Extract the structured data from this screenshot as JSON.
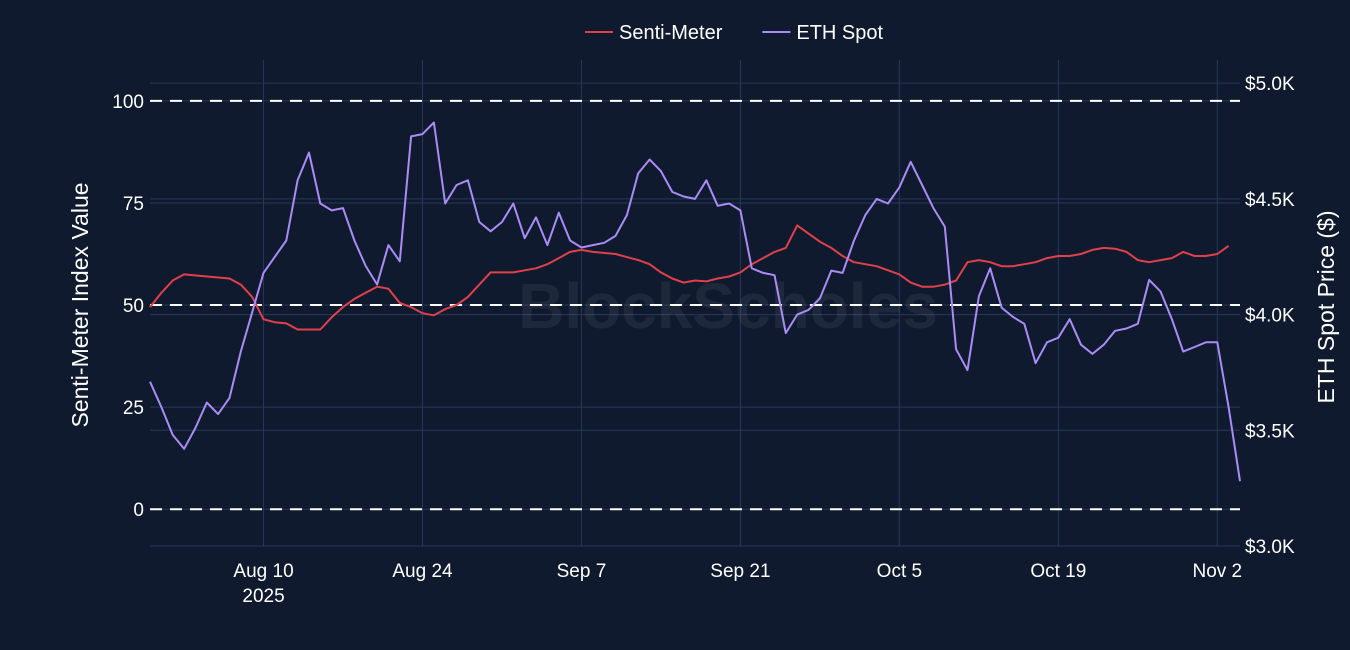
{
  "chart_data": {
    "type": "line",
    "title": "",
    "watermark": "BlockScholes",
    "xlabel": "",
    "ylabel_left": "Senti-Meter Index Value",
    "ylabel_right": "ETH Spot Price ($)",
    "x_range": [
      "2025-07-31",
      "2025-11-04"
    ],
    "x_ticks": [
      {
        "date": "2025-08-10",
        "label": "Aug 10",
        "sublabel": "2025"
      },
      {
        "date": "2025-08-24",
        "label": "Aug 24",
        "sublabel": ""
      },
      {
        "date": "2025-09-07",
        "label": "Sep 7",
        "sublabel": ""
      },
      {
        "date": "2025-09-21",
        "label": "Sep 21",
        "sublabel": ""
      },
      {
        "date": "2025-10-05",
        "label": "Oct 5",
        "sublabel": ""
      },
      {
        "date": "2025-10-19",
        "label": "Oct 19",
        "sublabel": ""
      },
      {
        "date": "2025-11-02",
        "label": "Nov 2",
        "sublabel": ""
      }
    ],
    "y_left": {
      "range": [
        -9,
        110
      ],
      "ticks": [
        {
          "value": 0,
          "label": "0"
        },
        {
          "value": 25,
          "label": "25"
        },
        {
          "value": 50,
          "label": "50"
        },
        {
          "value": 75,
          "label": "75"
        },
        {
          "value": 100,
          "label": "100"
        }
      ]
    },
    "y_right": {
      "range": [
        3000,
        5100
      ],
      "ticks": [
        {
          "value": 3000,
          "label": "$3.0K"
        },
        {
          "value": 3500,
          "label": "$3.5K"
        },
        {
          "value": 4000,
          "label": "$4.0K"
        },
        {
          "value": 4500,
          "label": "$4.5K"
        },
        {
          "value": 5000,
          "label": "$5.0K"
        }
      ]
    },
    "reference_lines_left": [
      0,
      50,
      100
    ],
    "grid": true,
    "legend_position": "top-center",
    "colors": {
      "background": "#101a2e",
      "grid": "#26385a",
      "senti": "#e0404a",
      "eth": "#a98cf5",
      "reference": "#ffffff"
    },
    "series": [
      {
        "name": "Senti-Meter",
        "axis": "left",
        "points": [
          [
            "2025-07-31",
            49.5
          ],
          [
            "2025-08-01",
            53
          ],
          [
            "2025-08-02",
            56
          ],
          [
            "2025-08-03",
            57.5
          ],
          [
            "2025-08-05",
            57
          ],
          [
            "2025-08-07",
            56.5
          ],
          [
            "2025-08-08",
            55
          ],
          [
            "2025-08-09",
            52
          ],
          [
            "2025-08-10",
            46.5
          ],
          [
            "2025-08-11",
            45.8
          ],
          [
            "2025-08-12",
            45.5
          ],
          [
            "2025-08-13",
            44
          ],
          [
            "2025-08-15",
            44
          ],
          [
            "2025-08-16",
            47
          ],
          [
            "2025-08-17",
            49.5
          ],
          [
            "2025-08-18",
            51.5
          ],
          [
            "2025-08-19",
            53
          ],
          [
            "2025-08-20",
            54.5
          ],
          [
            "2025-08-21",
            54
          ],
          [
            "2025-08-22",
            50.5
          ],
          [
            "2025-08-23",
            49.5
          ],
          [
            "2025-08-24",
            48
          ],
          [
            "2025-08-25",
            47.5
          ],
          [
            "2025-08-26",
            49
          ],
          [
            "2025-08-27",
            50
          ],
          [
            "2025-08-28",
            52
          ],
          [
            "2025-08-29",
            55
          ],
          [
            "2025-08-30",
            58
          ],
          [
            "2025-09-01",
            58
          ],
          [
            "2025-09-02",
            58.5
          ],
          [
            "2025-09-03",
            59
          ],
          [
            "2025-09-04",
            60
          ],
          [
            "2025-09-05",
            61.5
          ],
          [
            "2025-09-06",
            63
          ],
          [
            "2025-09-07",
            63.5
          ],
          [
            "2025-09-08",
            63
          ],
          [
            "2025-09-10",
            62.5
          ],
          [
            "2025-09-12",
            61
          ],
          [
            "2025-09-13",
            60
          ],
          [
            "2025-09-14",
            58
          ],
          [
            "2025-09-15",
            56.5
          ],
          [
            "2025-09-16",
            55.5
          ],
          [
            "2025-09-17",
            56
          ],
          [
            "2025-09-18",
            55.8
          ],
          [
            "2025-09-19",
            56.5
          ],
          [
            "2025-09-20",
            57
          ],
          [
            "2025-09-21",
            58
          ],
          [
            "2025-09-22",
            60
          ],
          [
            "2025-09-23",
            61.5
          ],
          [
            "2025-09-24",
            63
          ],
          [
            "2025-09-25",
            64
          ],
          [
            "2025-09-26",
            69.5
          ],
          [
            "2025-09-27",
            67.5
          ],
          [
            "2025-09-28",
            65.5
          ],
          [
            "2025-09-29",
            64
          ],
          [
            "2025-09-30",
            62
          ],
          [
            "2025-10-01",
            60.5
          ],
          [
            "2025-10-02",
            60
          ],
          [
            "2025-10-03",
            59.5
          ],
          [
            "2025-10-04",
            58.5
          ],
          [
            "2025-10-05",
            57.5
          ],
          [
            "2025-10-06",
            55.5
          ],
          [
            "2025-10-07",
            54.5
          ],
          [
            "2025-10-08",
            54.5
          ],
          [
            "2025-10-09",
            55
          ],
          [
            "2025-10-10",
            56
          ],
          [
            "2025-10-11",
            60.5
          ],
          [
            "2025-10-12",
            61
          ],
          [
            "2025-10-13",
            60.5
          ],
          [
            "2025-10-14",
            59.5
          ],
          [
            "2025-10-15",
            59.5
          ],
          [
            "2025-10-16",
            60
          ],
          [
            "2025-10-17",
            60.5
          ],
          [
            "2025-10-18",
            61.5
          ],
          [
            "2025-10-19",
            62
          ],
          [
            "2025-10-20",
            62
          ],
          [
            "2025-10-21",
            62.5
          ],
          [
            "2025-10-22",
            63.5
          ],
          [
            "2025-10-23",
            64
          ],
          [
            "2025-10-24",
            63.8
          ],
          [
            "2025-10-25",
            63
          ],
          [
            "2025-10-26",
            61
          ],
          [
            "2025-10-27",
            60.5
          ],
          [
            "2025-10-28",
            61
          ],
          [
            "2025-10-29",
            61.5
          ],
          [
            "2025-10-30",
            63
          ],
          [
            "2025-10-31",
            62
          ],
          [
            "2025-11-01",
            62
          ],
          [
            "2025-11-02",
            62.5
          ],
          [
            "2025-11-03",
            64.5
          ]
        ]
      },
      {
        "name": "ETH Spot",
        "axis": "right",
        "points": [
          [
            "2025-07-31",
            3710
          ],
          [
            "2025-08-01",
            3600
          ],
          [
            "2025-08-02",
            3480
          ],
          [
            "2025-08-03",
            3420
          ],
          [
            "2025-08-04",
            3510
          ],
          [
            "2025-08-05",
            3620
          ],
          [
            "2025-08-06",
            3570
          ],
          [
            "2025-08-07",
            3640
          ],
          [
            "2025-08-08",
            3840
          ],
          [
            "2025-08-09",
            4010
          ],
          [
            "2025-08-10",
            4180
          ],
          [
            "2025-08-11",
            4250
          ],
          [
            "2025-08-12",
            4320
          ],
          [
            "2025-08-13",
            4580
          ],
          [
            "2025-08-14",
            4700
          ],
          [
            "2025-08-15",
            4480
          ],
          [
            "2025-08-16",
            4450
          ],
          [
            "2025-08-17",
            4460
          ],
          [
            "2025-08-18",
            4320
          ],
          [
            "2025-08-19",
            4210
          ],
          [
            "2025-08-20",
            4130
          ],
          [
            "2025-08-21",
            4300
          ],
          [
            "2025-08-22",
            4230
          ],
          [
            "2025-08-23",
            4770
          ],
          [
            "2025-08-24",
            4780
          ],
          [
            "2025-08-25",
            4830
          ],
          [
            "2025-08-26",
            4480
          ],
          [
            "2025-08-27",
            4560
          ],
          [
            "2025-08-28",
            4580
          ],
          [
            "2025-08-29",
            4400
          ],
          [
            "2025-08-30",
            4360
          ],
          [
            "2025-08-31",
            4400
          ],
          [
            "2025-09-01",
            4480
          ],
          [
            "2025-09-02",
            4330
          ],
          [
            "2025-09-03",
            4420
          ],
          [
            "2025-09-04",
            4300
          ],
          [
            "2025-09-05",
            4440
          ],
          [
            "2025-09-06",
            4320
          ],
          [
            "2025-09-07",
            4290
          ],
          [
            "2025-09-08",
            4300
          ],
          [
            "2025-09-09",
            4310
          ],
          [
            "2025-09-10",
            4340
          ],
          [
            "2025-09-11",
            4430
          ],
          [
            "2025-09-12",
            4610
          ],
          [
            "2025-09-13",
            4670
          ],
          [
            "2025-09-14",
            4620
          ],
          [
            "2025-09-15",
            4530
          ],
          [
            "2025-09-16",
            4510
          ],
          [
            "2025-09-17",
            4500
          ],
          [
            "2025-09-18",
            4580
          ],
          [
            "2025-09-19",
            4470
          ],
          [
            "2025-09-20",
            4480
          ],
          [
            "2025-09-21",
            4450
          ],
          [
            "2025-09-22",
            4200
          ],
          [
            "2025-09-23",
            4180
          ],
          [
            "2025-09-24",
            4170
          ],
          [
            "2025-09-25",
            3920
          ],
          [
            "2025-09-26",
            4000
          ],
          [
            "2025-09-27",
            4020
          ],
          [
            "2025-09-28",
            4070
          ],
          [
            "2025-09-29",
            4190
          ],
          [
            "2025-09-30",
            4180
          ],
          [
            "2025-10-01",
            4320
          ],
          [
            "2025-10-02",
            4430
          ],
          [
            "2025-10-03",
            4500
          ],
          [
            "2025-10-04",
            4480
          ],
          [
            "2025-10-05",
            4550
          ],
          [
            "2025-10-06",
            4660
          ],
          [
            "2025-10-07",
            4560
          ],
          [
            "2025-10-08",
            4460
          ],
          [
            "2025-10-09",
            4380
          ],
          [
            "2025-10-10",
            3850
          ],
          [
            "2025-10-11",
            3760
          ],
          [
            "2025-10-12",
            4080
          ],
          [
            "2025-10-13",
            4200
          ],
          [
            "2025-10-14",
            4030
          ],
          [
            "2025-10-15",
            3990
          ],
          [
            "2025-10-16",
            3960
          ],
          [
            "2025-10-17",
            3790
          ],
          [
            "2025-10-18",
            3880
          ],
          [
            "2025-10-19",
            3900
          ],
          [
            "2025-10-20",
            3980
          ],
          [
            "2025-10-21",
            3870
          ],
          [
            "2025-10-22",
            3830
          ],
          [
            "2025-10-23",
            3870
          ],
          [
            "2025-10-24",
            3930
          ],
          [
            "2025-10-25",
            3940
          ],
          [
            "2025-10-26",
            3960
          ],
          [
            "2025-10-27",
            4150
          ],
          [
            "2025-10-28",
            4100
          ],
          [
            "2025-10-29",
            3980
          ],
          [
            "2025-10-30",
            3840
          ],
          [
            "2025-10-31",
            3860
          ],
          [
            "2025-11-01",
            3880
          ],
          [
            "2025-11-02",
            3880
          ],
          [
            "2025-11-03",
            3600
          ],
          [
            "2025-11-04",
            3280
          ]
        ]
      }
    ]
  }
}
